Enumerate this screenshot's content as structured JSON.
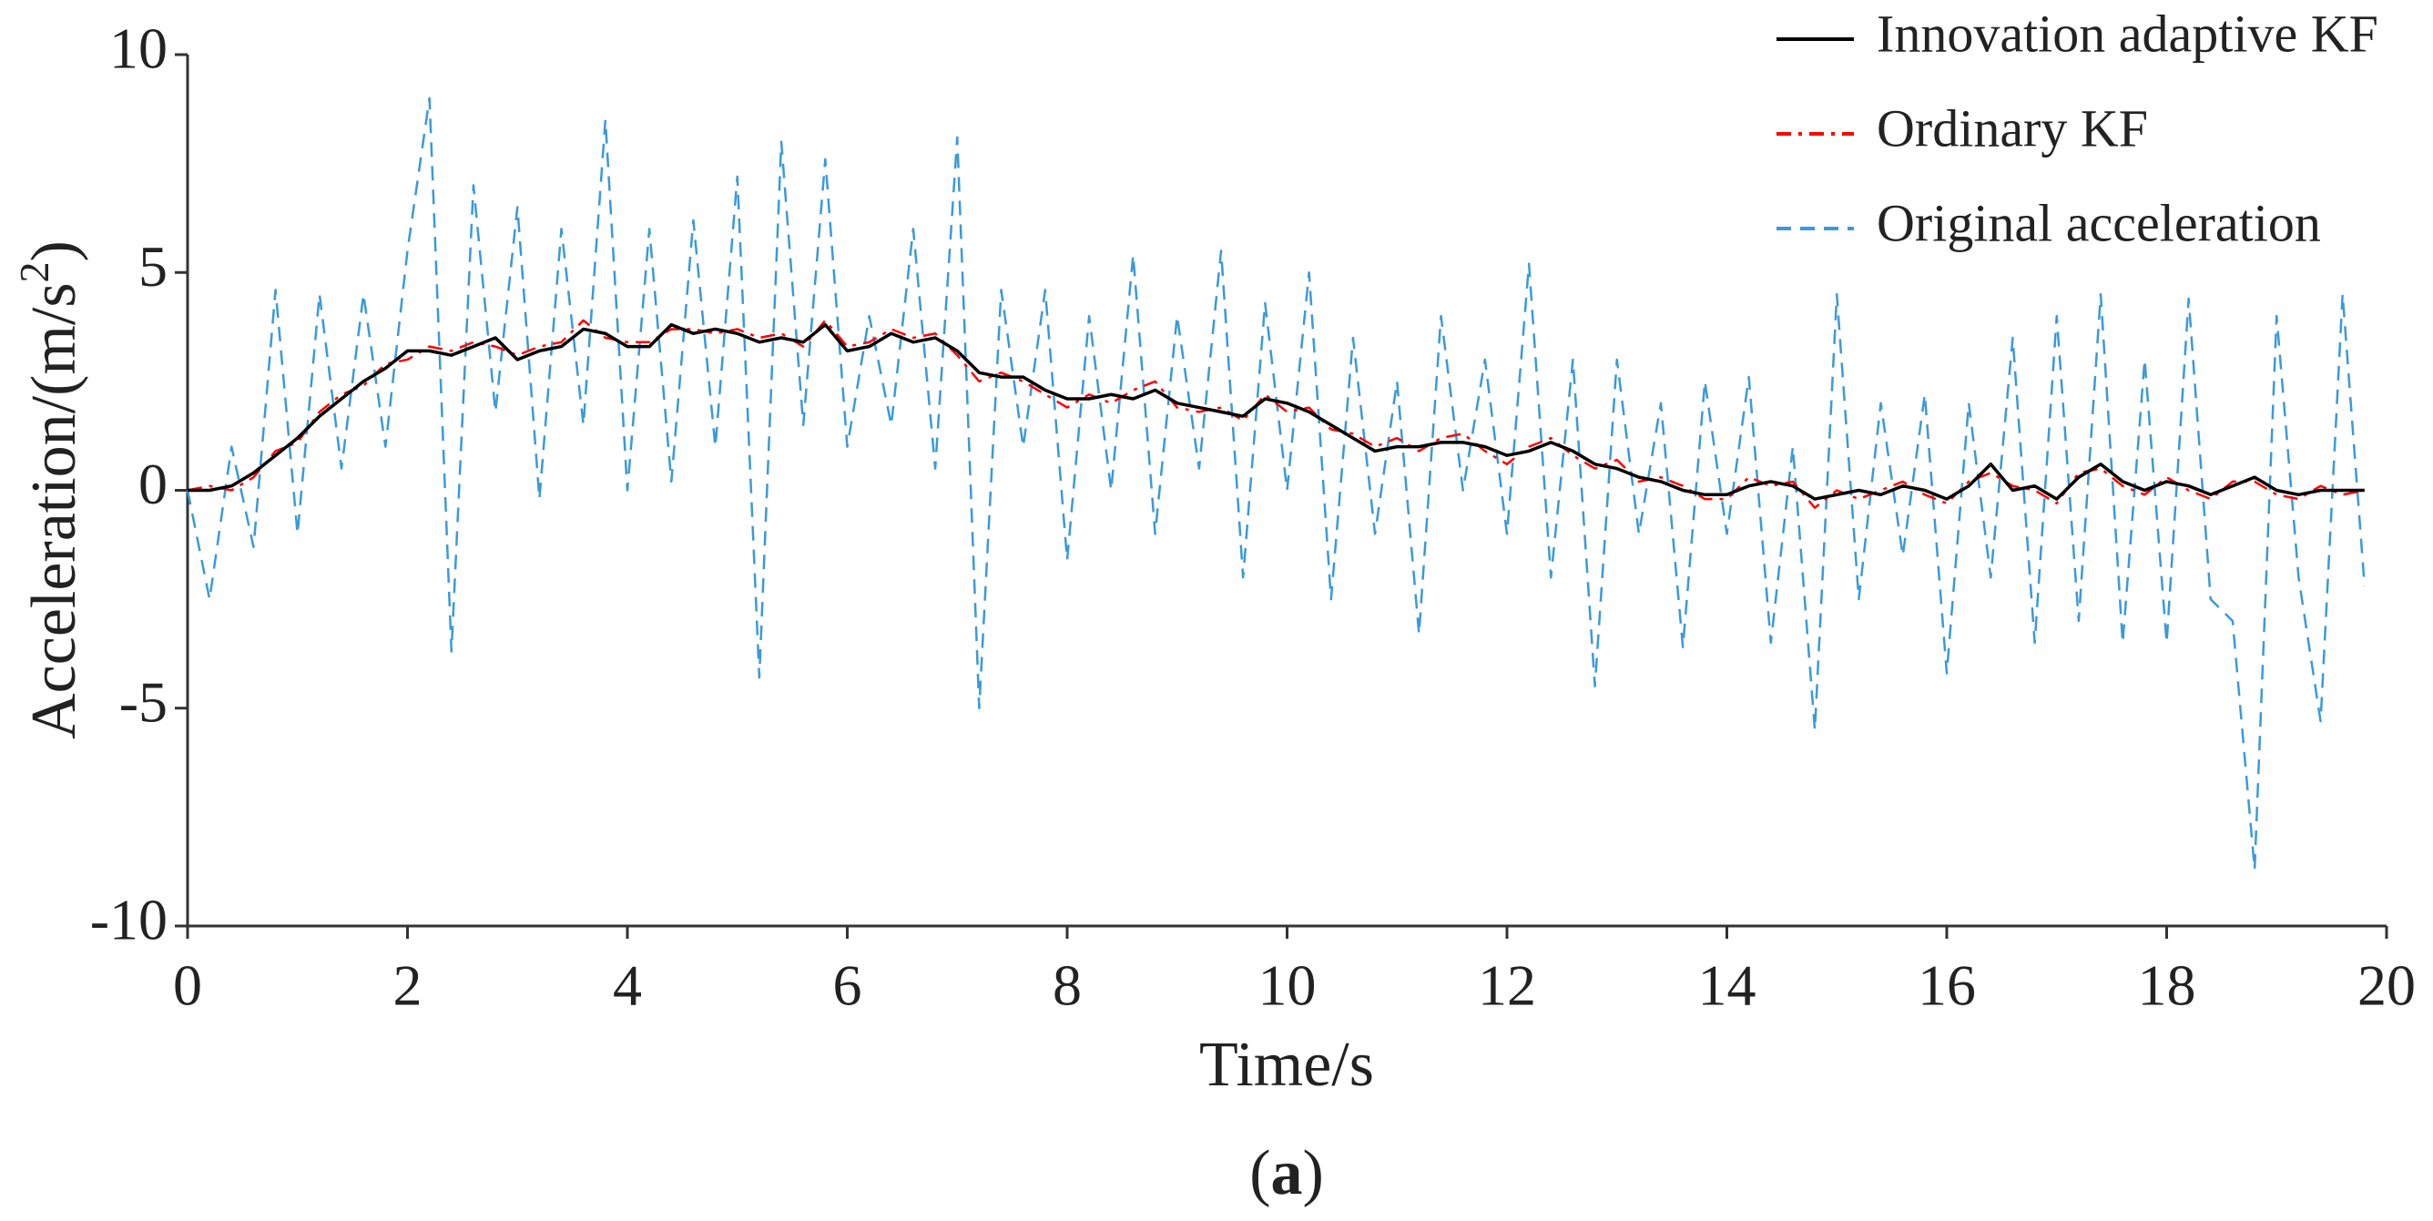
{
  "chart_data": {
    "type": "line",
    "xlabel": "Time/s",
    "ylabel": {
      "text": "Acceleration/(m/s",
      "superscript": "2",
      "close": ")"
    },
    "caption": {
      "open": "(",
      "label": "a",
      "close": ")"
    },
    "xlim": [
      0,
      20
    ],
    "ylim": [
      -10,
      10
    ],
    "xticks": [
      0,
      2,
      4,
      6,
      8,
      10,
      12,
      14,
      16,
      18,
      20
    ],
    "yticks": [
      -10,
      -5,
      0,
      5,
      10
    ],
    "legend": "top-right",
    "x": [
      0,
      0.2,
      0.4,
      0.6,
      0.8,
      1,
      1.2,
      1.4,
      1.6,
      1.8,
      2,
      2.2,
      2.4,
      2.6,
      2.8,
      3,
      3.2,
      3.4,
      3.6,
      3.8,
      4,
      4.2,
      4.4,
      4.6,
      4.8,
      5,
      5.2,
      5.4,
      5.6,
      5.8,
      6,
      6.2,
      6.4,
      6.6,
      6.8,
      7,
      7.2,
      7.4,
      7.6,
      7.8,
      8,
      8.2,
      8.4,
      8.6,
      8.8,
      9,
      9.2,
      9.4,
      9.6,
      9.8,
      10,
      10.2,
      10.4,
      10.6,
      10.8,
      11,
      11.2,
      11.4,
      11.6,
      11.8,
      12,
      12.2,
      12.4,
      12.6,
      12.8,
      13,
      13.2,
      13.4,
      13.6,
      13.8,
      14,
      14.2,
      14.4,
      14.6,
      14.8,
      15,
      15.2,
      15.4,
      15.6,
      15.8,
      16,
      16.2,
      16.4,
      16.6,
      16.8,
      17,
      17.2,
      17.4,
      17.6,
      17.8,
      18,
      18.2,
      18.4,
      18.6,
      18.8,
      19,
      19.2,
      19.4,
      19.6,
      19.8
    ],
    "series": [
      {
        "name": "Innovation adaptive KF",
        "color": "#000000",
        "linestyle": "solid",
        "values": [
          0,
          0,
          0.1,
          0.4,
          0.8,
          1.2,
          1.7,
          2.1,
          2.5,
          2.8,
          3.2,
          3.2,
          3.1,
          3.3,
          3.5,
          3.0,
          3.2,
          3.3,
          3.7,
          3.6,
          3.3,
          3.3,
          3.8,
          3.6,
          3.7,
          3.6,
          3.4,
          3.5,
          3.4,
          3.8,
          3.2,
          3.3,
          3.6,
          3.4,
          3.5,
          3.2,
          2.7,
          2.6,
          2.6,
          2.3,
          2.1,
          2.1,
          2.2,
          2.1,
          2.3,
          2.0,
          1.9,
          1.8,
          1.7,
          2.1,
          2.0,
          1.8,
          1.5,
          1.2,
          0.9,
          1.0,
          1.0,
          1.1,
          1.1,
          1.0,
          0.8,
          0.9,
          1.1,
          0.9,
          0.6,
          0.5,
          0.3,
          0.2,
          0.0,
          -0.1,
          -0.1,
          0.1,
          0.2,
          0.1,
          -0.2,
          -0.1,
          0.0,
          -0.1,
          0.1,
          0.0,
          -0.2,
          0.1,
          0.6,
          0.0,
          0.1,
          -0.2,
          0.3,
          0.6,
          0.2,
          0.0,
          0.2,
          0.1,
          -0.1,
          0.1,
          0.3,
          0.0,
          -0.1,
          0.0,
          0.0,
          0.0
        ]
      },
      {
        "name": "Ordinary KF",
        "color": "#ff0000",
        "linestyle": "dashdot",
        "values": [
          0,
          0.1,
          0,
          0.3,
          0.9,
          1.1,
          1.8,
          2.2,
          2.4,
          2.9,
          3.0,
          3.3,
          3.2,
          3.4,
          3.3,
          3.1,
          3.3,
          3.4,
          3.9,
          3.5,
          3.4,
          3.4,
          3.7,
          3.7,
          3.6,
          3.7,
          3.5,
          3.6,
          3.3,
          3.9,
          3.3,
          3.4,
          3.7,
          3.5,
          3.6,
          3.1,
          2.5,
          2.7,
          2.5,
          2.2,
          1.9,
          2.2,
          2.0,
          2.3,
          2.5,
          1.9,
          1.8,
          1.9,
          1.6,
          2.2,
          1.8,
          1.9,
          1.4,
          1.3,
          1.0,
          1.2,
          0.9,
          1.2,
          1.3,
          0.9,
          0.6,
          1.0,
          1.2,
          0.8,
          0.5,
          0.7,
          0.2,
          0.3,
          0.1,
          -0.2,
          -0.2,
          0.3,
          0.1,
          0.2,
          -0.4,
          0.0,
          -0.2,
          0.0,
          0.2,
          -0.1,
          -0.3,
          0.2,
          0.4,
          0.1,
          0.0,
          -0.3,
          0.4,
          0.5,
          0.1,
          -0.1,
          0.3,
          0.0,
          -0.2,
          0.2,
          0.2,
          -0.1,
          -0.2,
          0.1,
          -0.1,
          0.0
        ]
      },
      {
        "name": "Original acceleration",
        "color": "#3a9ad9",
        "linestyle": "dashed",
        "values": [
          0,
          -2.5,
          1,
          -1.3,
          4.6,
          -1,
          4.5,
          0.5,
          4.5,
          1,
          5.5,
          9,
          -3.7,
          7,
          1.8,
          6.5,
          -0.2,
          6,
          1.5,
          8.5,
          0,
          6,
          0.2,
          6.2,
          1,
          7.2,
          -4.3,
          8,
          1.5,
          7.6,
          1,
          4,
          1.5,
          6,
          0.5,
          8.1,
          -5,
          4.6,
          1,
          4.6,
          -1.6,
          4,
          0,
          5.4,
          -1,
          4,
          0.5,
          5.5,
          -2,
          4.3,
          0,
          5,
          -2.5,
          3.5,
          -1,
          2.5,
          -3.3,
          4,
          0,
          3,
          -1,
          5.2,
          -2,
          3,
          -4.5,
          3,
          -1,
          2,
          -3.6,
          2.5,
          -1,
          2.6,
          -3.5,
          1,
          -5.5,
          4.5,
          -2.5,
          2,
          -1.5,
          2.2,
          -4.2,
          2,
          -2,
          3.5,
          -3.5,
          4,
          -3,
          4.5,
          -3.5,
          3,
          -3.5,
          4.4,
          -2.5,
          -3,
          -8.7,
          4,
          -2,
          -5.3,
          4.5,
          -2.2
        ]
      }
    ]
  }
}
